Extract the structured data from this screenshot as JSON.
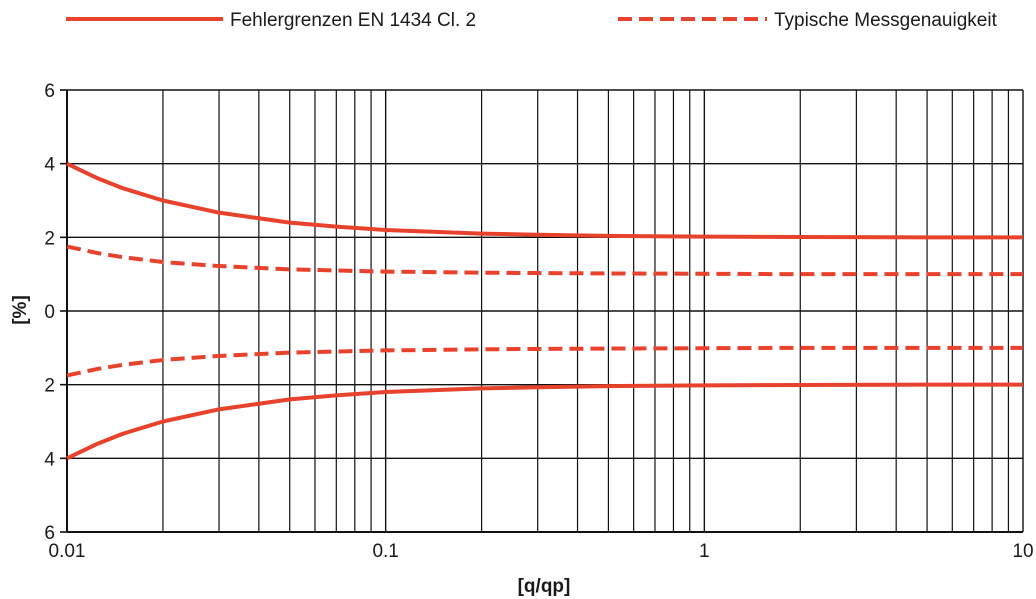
{
  "chart_data": {
    "type": "line",
    "title": "",
    "xlabel": "[q/qp]",
    "ylabel": "[%]",
    "x_scale": "log",
    "xlim": [
      0.01,
      10
    ],
    "ylim": [
      -6,
      6
    ],
    "grid": true,
    "legend_position": "top",
    "x_tick_values": [
      0.01,
      0.1,
      1,
      10
    ],
    "x_tick_labels": [
      "0.01",
      "0.1",
      "1",
      "10"
    ],
    "y_tick_values": [
      6,
      4,
      2,
      0,
      -2,
      -4,
      -6
    ],
    "y_tick_labels": [
      "6",
      "4",
      "2",
      "0",
      "2",
      "4",
      "6"
    ],
    "legend": [
      {
        "label": "Fehlergrenzen EN 1434 Cl. 2",
        "style": "solid"
      },
      {
        "label": "Typische Messgenauigkeit",
        "style": "dashed"
      }
    ],
    "series": [
      {
        "legend": 0,
        "style": "solid",
        "x": [
          0.01,
          0.0125,
          0.015,
          0.02,
          0.03,
          0.05,
          0.07,
          0.1,
          0.2,
          0.3,
          0.5,
          1,
          2,
          5,
          10
        ],
        "y": [
          4.0,
          3.6,
          3.33,
          3.0,
          2.67,
          2.4,
          2.29,
          2.2,
          2.1,
          2.07,
          2.04,
          2.02,
          2.01,
          2.0,
          2.0
        ]
      },
      {
        "legend": 0,
        "style": "solid",
        "x": [
          0.01,
          0.0125,
          0.015,
          0.02,
          0.03,
          0.05,
          0.07,
          0.1,
          0.2,
          0.3,
          0.5,
          1,
          2,
          5,
          10
        ],
        "y": [
          -4.0,
          -3.6,
          -3.33,
          -3.0,
          -2.67,
          -2.4,
          -2.29,
          -2.2,
          -2.1,
          -2.07,
          -2.04,
          -2.02,
          -2.01,
          -2.0,
          -2.0
        ]
      },
      {
        "legend": 1,
        "style": "dashed",
        "x": [
          0.01,
          0.0125,
          0.015,
          0.02,
          0.03,
          0.05,
          0.07,
          0.1,
          0.2,
          0.3,
          0.5,
          1,
          2,
          5,
          10
        ],
        "y": [
          1.75,
          1.57,
          1.46,
          1.33,
          1.22,
          1.13,
          1.1,
          1.07,
          1.04,
          1.03,
          1.02,
          1.01,
          1.0,
          1.0,
          1.0
        ]
      },
      {
        "legend": 1,
        "style": "dashed",
        "x": [
          0.01,
          0.0125,
          0.015,
          0.02,
          0.03,
          0.05,
          0.07,
          0.1,
          0.2,
          0.3,
          0.5,
          1,
          2,
          5,
          10
        ],
        "y": [
          -1.75,
          -1.57,
          -1.46,
          -1.33,
          -1.22,
          -1.13,
          -1.1,
          -1.07,
          -1.04,
          -1.03,
          -1.02,
          -1.01,
          -1.0,
          -1.0,
          -1.0
        ]
      }
    ],
    "colors": {
      "line": "#e8412c",
      "grid": "#111111",
      "text": "#1a1a1a"
    }
  }
}
